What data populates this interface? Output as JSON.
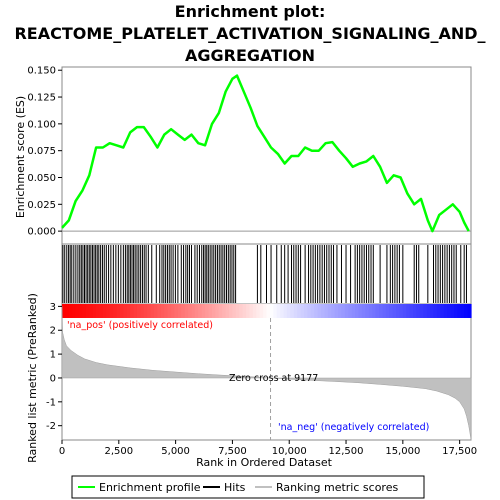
{
  "chart_data": {
    "type": "line",
    "title_lines": [
      "Enrichment plot:",
      "REACTOME_PLATELET_ACTIVATION_SIGNALING_AND_",
      "AGGREGATION"
    ],
    "xlabel": "Rank in Ordered Dataset",
    "xlim": [
      0,
      18000
    ],
    "x_ticks": [
      0,
      2500,
      5000,
      7500,
      10000,
      12500,
      15000,
      17500
    ],
    "x_tick_labels": [
      "0",
      "2,500",
      "5,000",
      "7,500",
      "10,000",
      "12,500",
      "15,000",
      "17,500"
    ],
    "es_panel": {
      "ylabel": "Enrichment score (ES)",
      "ylim": [
        -0.012,
        0.153
      ],
      "y_ticks": [
        0.0,
        0.025,
        0.05,
        0.075,
        0.1,
        0.125,
        0.15
      ],
      "y_tick_labels": [
        "0.000",
        "0.025",
        "0.050",
        "0.075",
        "0.100",
        "0.125",
        "0.150"
      ],
      "color": "#00ff00",
      "x": [
        0,
        300,
        600,
        900,
        1200,
        1500,
        1800,
        2100,
        2400,
        2700,
        3000,
        3300,
        3600,
        3900,
        4200,
        4500,
        4800,
        5100,
        5400,
        5700,
        6000,
        6300,
        6600,
        6900,
        7200,
        7500,
        7700,
        8000,
        8300,
        8600,
        8900,
        9200,
        9500,
        9800,
        10100,
        10400,
        10700,
        11000,
        11300,
        11600,
        11900,
        12200,
        12500,
        12800,
        13100,
        13400,
        13700,
        14000,
        14300,
        14600,
        14900,
        15200,
        15500,
        15800,
        16100,
        16300,
        16600,
        16900,
        17200,
        17500,
        17700,
        17900
      ],
      "y": [
        0.003,
        0.01,
        0.028,
        0.038,
        0.052,
        0.078,
        0.078,
        0.082,
        0.08,
        0.078,
        0.092,
        0.097,
        0.097,
        0.088,
        0.078,
        0.09,
        0.095,
        0.09,
        0.085,
        0.09,
        0.082,
        0.08,
        0.1,
        0.11,
        0.13,
        0.142,
        0.145,
        0.13,
        0.115,
        0.098,
        0.088,
        0.078,
        0.072,
        0.063,
        0.07,
        0.07,
        0.078,
        0.075,
        0.075,
        0.082,
        0.083,
        0.075,
        0.068,
        0.06,
        0.063,
        0.065,
        0.07,
        0.06,
        0.045,
        0.052,
        0.05,
        0.035,
        0.025,
        0.03,
        0.01,
        0.0,
        0.015,
        0.02,
        0.025,
        0.018,
        0.008,
        0.0
      ]
    },
    "hits_panel": {
      "hit_ranks": [
        40,
        120,
        210,
        290,
        360,
        430,
        520,
        610,
        700,
        780,
        850,
        920,
        990,
        1060,
        1130,
        1200,
        1270,
        1340,
        1410,
        1480,
        1550,
        1620,
        1700,
        1780,
        1860,
        1950,
        2050,
        2150,
        2260,
        2370,
        2480,
        2590,
        2700,
        2790,
        2870,
        2940,
        3010,
        3080,
        3150,
        3220,
        3300,
        3380,
        3460,
        3540,
        3620,
        3700,
        3800,
        3950,
        4150,
        4300,
        4400,
        4480,
        4560,
        4640,
        4720,
        4800,
        4890,
        4990,
        5100,
        5250,
        5350,
        5450,
        5530,
        5610,
        5700,
        5850,
        5950,
        6050,
        6150,
        6230,
        6300,
        6370,
        6440,
        6520,
        6600,
        6680,
        6760,
        6840,
        6920,
        7000,
        7080,
        7160,
        7240,
        7320,
        7400,
        7480,
        7560,
        7640,
        8600,
        8750,
        9000,
        9200,
        9450,
        9650,
        9800,
        9950,
        10100,
        10200,
        10300,
        10400,
        10500,
        10700,
        10850,
        10950,
        11050,
        11150,
        11250,
        11350,
        11450,
        11550,
        11650,
        11750,
        11850,
        11950,
        12100,
        12300,
        12500,
        12700,
        12900,
        13000,
        13100,
        13200,
        13300,
        13400,
        13500,
        13600,
        13700,
        14000,
        14300,
        14450,
        14550,
        14650,
        14750,
        14850,
        15000,
        15500,
        15600,
        15700,
        16100,
        16350,
        16450,
        16550,
        16650,
        16750,
        16850,
        16950,
        17050,
        17150,
        17250,
        17350,
        17550,
        17700,
        17800
      ]
    },
    "metric_panel": {
      "ylabel": "Ranked list metric (PreRanked)",
      "ylim": [
        -2.6,
        3.1
      ],
      "y_ticks": [
        3,
        2,
        1,
        0,
        -1,
        -2
      ],
      "y_tick_labels": [
        "3",
        "2",
        "1",
        "0",
        "-1",
        "-2"
      ],
      "x": [
        0,
        30,
        100,
        200,
        400,
        700,
        1000,
        1500,
        2000,
        3000,
        4000,
        5000,
        6000,
        7000,
        8000,
        9177,
        10000,
        11000,
        12000,
        13000,
        14000,
        15000,
        16000,
        16500,
        17000,
        17300,
        17500,
        17700,
        17800,
        17900,
        17950,
        18000
      ],
      "y": [
        3.0,
        1.9,
        1.6,
        1.35,
        1.15,
        0.95,
        0.8,
        0.65,
        0.55,
        0.42,
        0.32,
        0.25,
        0.18,
        0.12,
        0.07,
        0.0,
        -0.05,
        -0.1,
        -0.15,
        -0.2,
        -0.27,
        -0.35,
        -0.45,
        -0.55,
        -0.7,
        -0.85,
        -1.0,
        -1.3,
        -1.6,
        -2.0,
        -2.3,
        -2.6
      ],
      "pos_label": "'na_pos' (positively correlated)",
      "neg_label": "'na_neg' (negatively correlated)",
      "zero_cross_label": "Zero cross at 9177",
      "zero_cross": 9177
    },
    "legend": {
      "placement": "bottom",
      "entries": [
        {
          "label": "Enrichment profile",
          "color": "#00ff00"
        },
        {
          "label": "Hits",
          "color": "#000000"
        },
        {
          "label": "Ranking metric scores",
          "color": "#c0c0c0"
        }
      ]
    },
    "colors": {
      "pos_label": "#ff0000",
      "neg_label": "#0000ff",
      "profile": "#00ff00"
    }
  }
}
